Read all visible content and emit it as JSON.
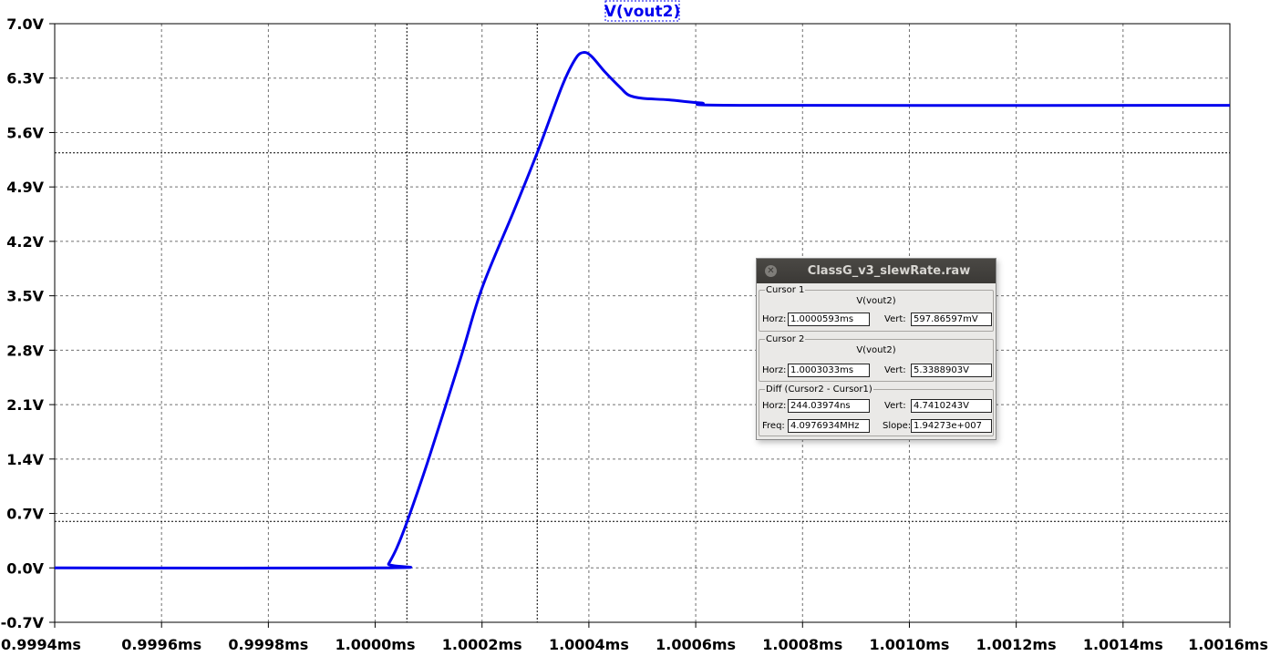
{
  "chart_data": {
    "type": "line",
    "title": "V(vout2)",
    "x_ticks": [
      "0.9994ms",
      "0.9996ms",
      "0.9998ms",
      "1.0000ms",
      "1.0002ms",
      "1.0004ms",
      "1.0006ms",
      "1.0008ms",
      "1.0010ms",
      "1.0012ms",
      "1.0014ms",
      "1.0016ms"
    ],
    "y_ticks": [
      "7.0V",
      "6.3V",
      "5.6V",
      "4.9V",
      "4.2V",
      "3.5V",
      "2.8V",
      "2.1V",
      "1.4V",
      "0.7V",
      "0.0V",
      "-0.7V"
    ],
    "xlim": [
      0.9994,
      1.0016
    ],
    "ylim": [
      -0.7,
      7.0
    ],
    "x_unit": "ms",
    "y_unit": "V",
    "grid": true,
    "series": [
      {
        "name": "V(vout2)",
        "color": "#0000ee",
        "x": [
          0.9994,
          1.00002,
          1.000025,
          1.00004,
          1.00006,
          1.0001,
          1.00016,
          1.0002,
          1.00026,
          1.0003033,
          1.00035,
          1.000375,
          1.00039,
          1.000405,
          1.00043,
          1.00046,
          1.000475,
          1.0005,
          1.00055,
          1.00061,
          1.0007,
          1.0016
        ],
        "values": [
          0.0,
          0.0,
          0.05,
          0.25,
          0.6,
          1.4,
          2.7,
          3.6,
          4.6,
          5.34,
          6.2,
          6.55,
          6.63,
          6.58,
          6.38,
          6.17,
          6.08,
          6.04,
          6.02,
          5.98,
          5.95,
          5.95
        ]
      }
    ],
    "cursors": [
      {
        "x": 1.0000593,
        "y": 0.59786597
      },
      {
        "x": 1.0003033,
        "y": 5.3388903
      }
    ]
  },
  "dialog": {
    "title": "ClassG_v3_slewRate.raw",
    "cursor1": {
      "legend": "Cursor 1",
      "signal": "V(vout2)",
      "horz_label": "Horz:",
      "horz_value": "1.0000593ms",
      "vert_label": "Vert:",
      "vert_value": "597.86597mV"
    },
    "cursor2": {
      "legend": "Cursor 2",
      "signal": "V(vout2)",
      "horz_label": "Horz:",
      "horz_value": "1.0003033ms",
      "vert_label": "Vert:",
      "vert_value": "5.3388903V"
    },
    "diff": {
      "legend": "Diff (Cursor2 - Cursor1)",
      "horz_label": "Horz:",
      "horz_value": "244.03974ns",
      "vert_label": "Vert:",
      "vert_value": "4.7410243V",
      "freq_label": "Freq:",
      "freq_value": "4.0976934MHz",
      "slope_label": "Slope:",
      "slope_value": "1.94273e+007"
    }
  }
}
